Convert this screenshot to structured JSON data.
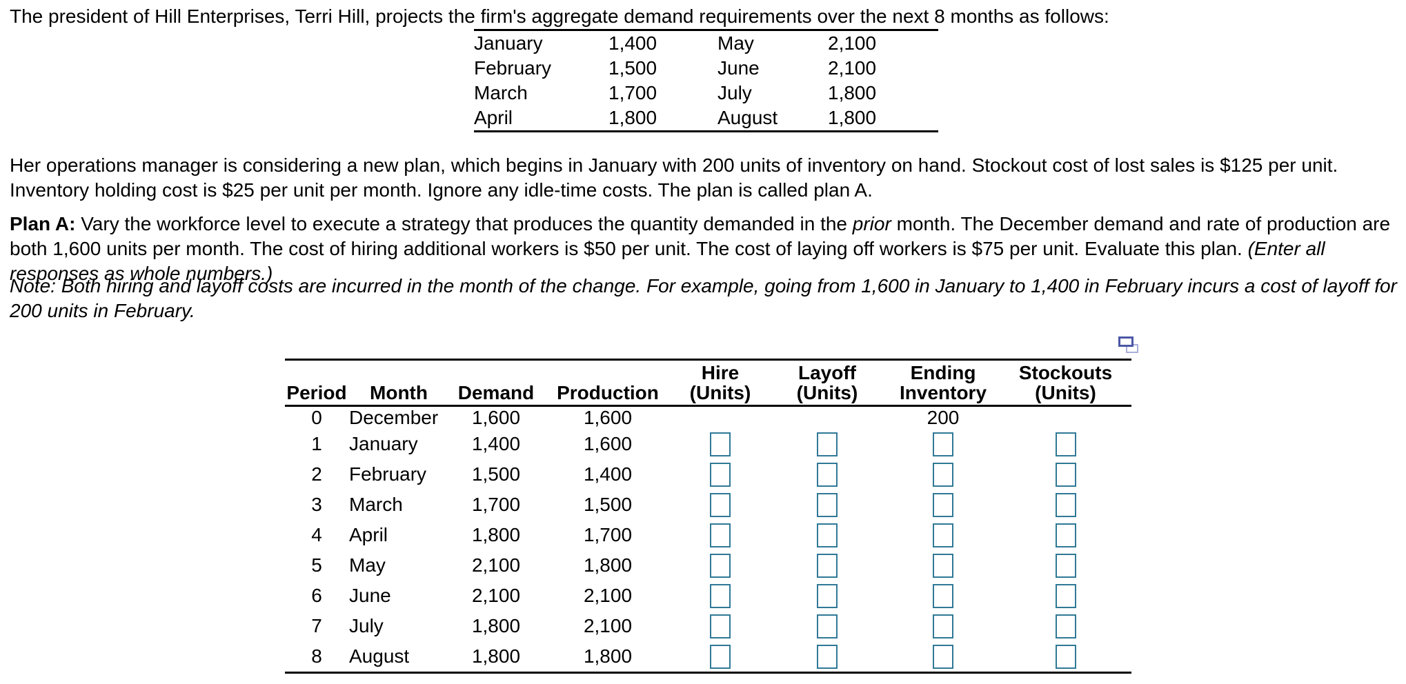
{
  "intro": {
    "text": "The president of Hill Enterprises, Terri Hill, projects the firm's aggregate demand requirements over the next 8 months as follows:"
  },
  "demand_table": {
    "rows": [
      {
        "month1": "January",
        "value1": "1,400",
        "month2": "May",
        "value2": "2,100"
      },
      {
        "month1": "February",
        "value1": "1,500",
        "month2": "June",
        "value2": "2,100"
      },
      {
        "month1": "March",
        "value1": "1,700",
        "month2": "July",
        "value2": "1,800"
      },
      {
        "month1": "April",
        "value1": "1,800",
        "month2": "August",
        "value2": "1,800"
      }
    ]
  },
  "paragraphs": {
    "manager": "Her operations manager is considering a new plan, which begins in January with 200 units of inventory on hand. Stockout cost of lost sales is $125 per unit. Inventory holding cost is $25 per unit per month. Ignore any idle-time costs. The plan is called plan A.",
    "plan_a_label": "Plan A:",
    "plan_a_part1": " Vary the workforce level to execute a strategy that produces the quantity demanded in the ",
    "plan_a_italic_word": "prior",
    "plan_a_part2": " month. The December demand and rate of production are both 1,600 units per month. The cost of hiring additional workers is $50 per unit. The cost of laying off workers is $75 per unit. Evaluate this plan. ",
    "plan_a_paren": "(Enter all responses as whole numbers.)",
    "note": "Note: Both hiring and layoff costs are incurred in the month of the change. For example, going from 1,600 in January to 1,400 in February incurs a cost of layoff for 200 units in February."
  },
  "plan_table": {
    "headers": {
      "period": "Period",
      "month": "Month",
      "demand": "Demand",
      "production": "Production",
      "hire_line1": "Hire",
      "hire_line2": "(Units)",
      "layoff_line1": "Layoff",
      "layoff_line2": "(Units)",
      "ending_line1": "Ending",
      "ending_line2": "Inventory",
      "stockouts_line1": "Stockouts",
      "stockouts_line2": "(Units)"
    },
    "initial_inventory": "200",
    "rows": [
      {
        "period": "0",
        "month": "December",
        "demand": "1,600",
        "production": "1,600",
        "has_inputs": false
      },
      {
        "period": "1",
        "month": "January",
        "demand": "1,400",
        "production": "1,600",
        "has_inputs": true
      },
      {
        "period": "2",
        "month": "February",
        "demand": "1,500",
        "production": "1,400",
        "has_inputs": true
      },
      {
        "period": "3",
        "month": "March",
        "demand": "1,700",
        "production": "1,500",
        "has_inputs": true
      },
      {
        "period": "4",
        "month": "April",
        "demand": "1,800",
        "production": "1,700",
        "has_inputs": true
      },
      {
        "period": "5",
        "month": "May",
        "demand": "2,100",
        "production": "1,800",
        "has_inputs": true
      },
      {
        "period": "6",
        "month": "June",
        "demand": "2,100",
        "production": "2,100",
        "has_inputs": true
      },
      {
        "period": "7",
        "month": "July",
        "demand": "1,800",
        "production": "2,100",
        "has_inputs": true
      },
      {
        "period": "8",
        "month": "August",
        "demand": "1,800",
        "production": "1,800",
        "has_inputs": true
      }
    ],
    "input_columns": [
      "hire",
      "layoff",
      "ending-inventory",
      "stockouts"
    ],
    "input_values": [
      "",
      "",
      "",
      ""
    ]
  },
  "icons": {
    "popup": "open-in-new-window"
  },
  "colors": {
    "input_border": "#2f7896",
    "icon_dark": "#4b57a7",
    "icon_light": "#a9afd9",
    "text": "#000000",
    "background": "#ffffff"
  }
}
